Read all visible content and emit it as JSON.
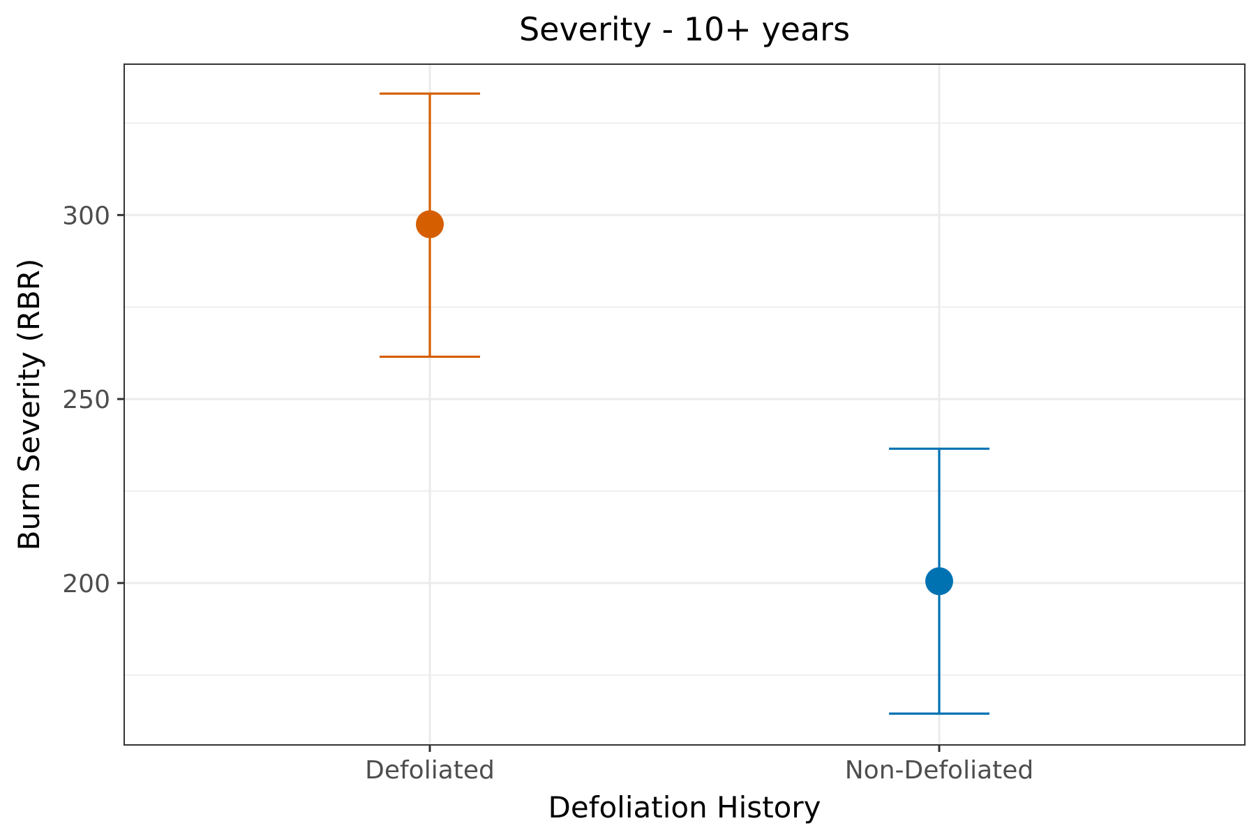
{
  "chart_data": {
    "type": "errorbar",
    "title": "Severity - 10+ years",
    "xlabel": "Defoliation History",
    "ylabel": "Burn Severity (RBR)",
    "categories": [
      "Defoliated",
      "Non-Defoliated"
    ],
    "points": [
      {
        "category": "Defoliated",
        "value": 297.5,
        "lower": 261.5,
        "upper": 333.0,
        "color": "#D55E00"
      },
      {
        "category": "Non-Defoliated",
        "value": 200.5,
        "lower": 164.5,
        "upper": 236.5,
        "color": "#0072B2"
      }
    ],
    "ylim": [
      156,
      341
    ],
    "yticks": [
      200,
      250,
      300
    ],
    "yticks_minor": [
      175,
      225,
      275,
      325
    ],
    "grid": true,
    "legend": "none"
  }
}
